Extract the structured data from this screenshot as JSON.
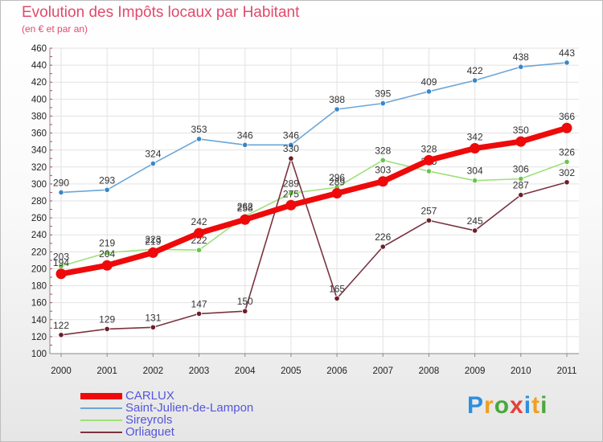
{
  "title": "Evolution des Impôts locaux par Habitant",
  "subtitle": "(en € et par an)",
  "logo": {
    "text": "Proxiti",
    "letters": [
      "P",
      "r",
      "o",
      "x",
      "i",
      "t",
      "i"
    ]
  },
  "chart_data": {
    "type": "line",
    "title": "Evolution des Impôts locaux par Habitant",
    "ylabel": "(en € et par an)",
    "x": [
      "2000",
      "2001",
      "2002",
      "2003",
      "2004",
      "2005",
      "2006",
      "2007",
      "2008",
      "2009",
      "2010",
      "2011"
    ],
    "ylim": [
      100,
      460
    ],
    "yticks": [
      100,
      120,
      140,
      160,
      180,
      200,
      220,
      240,
      260,
      280,
      300,
      320,
      340,
      360,
      380,
      400,
      420,
      440,
      460
    ],
    "grid": true,
    "legend_position": "bottom-left",
    "series": [
      {
        "name": "Saint-Julien-de-Lampon",
        "color": "#6aa6d8",
        "marker": "#3a86c8",
        "values": [
          290,
          293,
          324,
          353,
          346,
          346,
          388,
          395,
          409,
          422,
          438,
          443
        ]
      },
      {
        "name": "Sireyrols",
        "color": "#9ee07a",
        "marker": "#6cc44a",
        "values": [
          203,
          219,
          223,
          222,
          262,
          289,
          296,
          328,
          315,
          304,
          306,
          326
        ]
      },
      {
        "name": "Orliaguet",
        "color": "#7a3340",
        "marker": "#6a1f2a",
        "values": [
          122,
          129,
          131,
          147,
          150,
          330,
          165,
          226,
          257,
          245,
          287,
          302
        ]
      },
      {
        "name": "CARLUX",
        "color": "#ee0a0a",
        "marker": "#ee0a0a",
        "values": [
          194,
          204,
          219,
          242,
          258,
          275,
          289,
          303,
          328,
          342,
          350,
          366
        ]
      }
    ]
  }
}
